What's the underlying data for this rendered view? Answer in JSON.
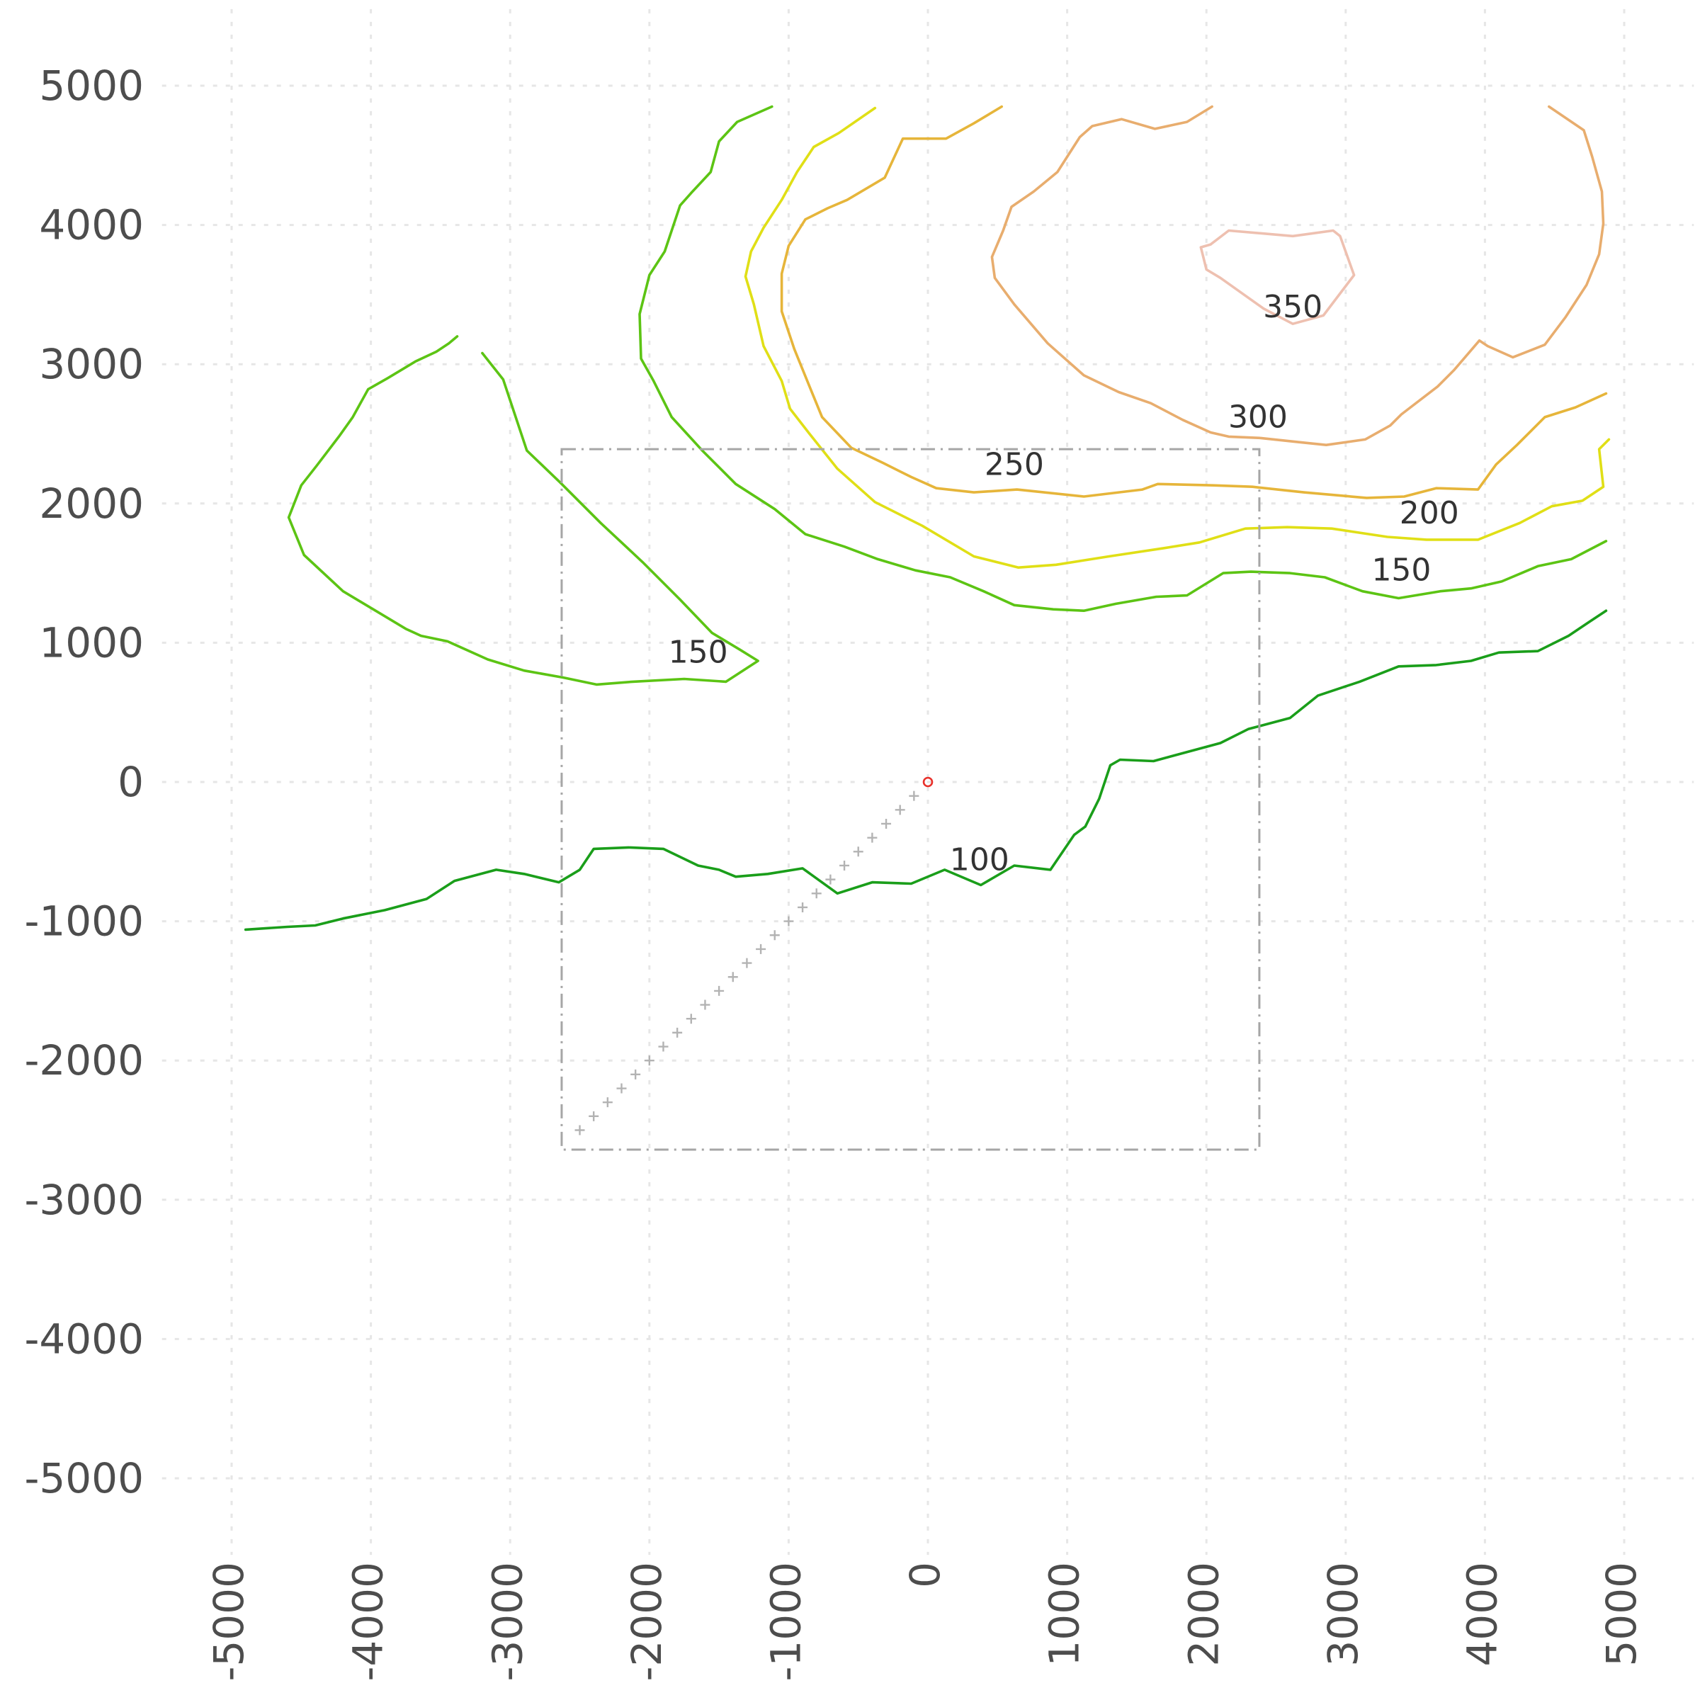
{
  "chart_data": {
    "type": "contour",
    "title": "",
    "xlabel": "",
    "ylabel": "",
    "xlim": [
      -5500,
      5500
    ],
    "ylim": [
      -5550,
      5550
    ],
    "x_ticks": [
      "-5000",
      "-4000",
      "-3000",
      "-2000",
      "-1000",
      "0",
      "1000",
      "2000",
      "3000",
      "4000",
      "5000"
    ],
    "y_ticks": [
      "5000",
      "4000",
      "3000",
      "2000",
      "1000",
      "0",
      "-1000",
      "-2000",
      "-3000",
      "-4000",
      "-5000"
    ],
    "grid": true,
    "colors": {
      "level_100": "#1a9e1a",
      "level_150": "#5cc414",
      "level_200": "#e0df16",
      "level_250": "#e6b53a",
      "level_300": "#e8ad6e",
      "level_350": "#eec0b0",
      "region": "#a6a6a6",
      "path": "#b3b3b3",
      "origin": "#e8302a"
    },
    "contours": [
      {
        "level": "100",
        "color_key": "level_100",
        "label_at": [
          370,
          -560
        ],
        "points": [
          [
            -4900,
            -1060
          ],
          [
            -4600,
            -1040
          ],
          [
            -4400,
            -1030
          ],
          [
            -4200,
            -980
          ],
          [
            -3900,
            -920
          ],
          [
            -3600,
            -840
          ],
          [
            -3400,
            -710
          ],
          [
            -3100,
            -630
          ],
          [
            -2900,
            -660
          ],
          [
            -2650,
            -720
          ],
          [
            -2500,
            -630
          ],
          [
            -2400,
            -480
          ],
          [
            -2150,
            -470
          ],
          [
            -1900,
            -480
          ],
          [
            -1650,
            -600
          ],
          [
            -1500,
            -630
          ],
          [
            -1380,
            -680
          ],
          [
            -1150,
            -660
          ],
          [
            -900,
            -620
          ],
          [
            -650,
            -800
          ],
          [
            -400,
            -720
          ],
          [
            -120,
            -730
          ],
          [
            120,
            -630
          ],
          [
            380,
            -740
          ],
          [
            620,
            -600
          ],
          [
            880,
            -630
          ],
          [
            1050,
            -380
          ],
          [
            1130,
            -320
          ],
          [
            1230,
            -120
          ],
          [
            1310,
            120
          ],
          [
            1380,
            160
          ],
          [
            1620,
            150
          ],
          [
            2100,
            280
          ],
          [
            2300,
            380
          ],
          [
            2600,
            460
          ],
          [
            2800,
            620
          ],
          [
            3100,
            720
          ],
          [
            3380,
            830
          ],
          [
            3650,
            840
          ],
          [
            3900,
            870
          ],
          [
            4100,
            930
          ],
          [
            4380,
            940
          ],
          [
            4600,
            1050
          ],
          [
            4750,
            1150
          ],
          [
            4870,
            1230
          ]
        ]
      },
      {
        "level": "150",
        "color_key": "level_150",
        "label_at": [
          -1650,
          930
        ],
        "points": [
          [
            -1120,
            4850
          ],
          [
            -1370,
            4740
          ],
          [
            -1500,
            4600
          ],
          [
            -1560,
            4380
          ],
          [
            -1700,
            4230
          ],
          [
            -1780,
            4140
          ],
          [
            -1890,
            3810
          ],
          [
            -2000,
            3640
          ],
          [
            -2070,
            3360
          ],
          [
            -2060,
            3040
          ],
          [
            -1970,
            2880
          ],
          [
            -1840,
            2620
          ],
          [
            -1620,
            2380
          ],
          [
            -1380,
            2140
          ],
          [
            -1100,
            1960
          ],
          [
            -880,
            1780
          ],
          [
            -600,
            1690
          ],
          [
            -360,
            1600
          ],
          [
            -90,
            1520
          ],
          [
            160,
            1470
          ],
          [
            400,
            1370
          ],
          [
            620,
            1270
          ],
          [
            900,
            1240
          ],
          [
            1120,
            1230
          ],
          [
            1350,
            1280
          ],
          [
            1640,
            1330
          ],
          [
            1860,
            1340
          ],
          [
            2120,
            1500
          ],
          [
            2320,
            1510
          ],
          [
            2600,
            1500
          ],
          [
            2850,
            1470
          ],
          [
            3120,
            1370
          ],
          [
            3380,
            1320
          ],
          [
            3680,
            1370
          ],
          [
            3900,
            1390
          ],
          [
            4120,
            1440
          ],
          [
            4380,
            1550
          ],
          [
            4620,
            1600
          ],
          [
            4870,
            1730
          ]
        ]
      },
      {
        "level": "150",
        "color_key": "level_150",
        "label_at": [
          3400,
          1520
        ],
        "points": [
          [
            -3380,
            3200
          ],
          [
            -3440,
            3150
          ],
          [
            -3530,
            3090
          ],
          [
            -3680,
            3020
          ],
          [
            -3880,
            2900
          ],
          [
            -4020,
            2820
          ],
          [
            -4130,
            2620
          ],
          [
            -4230,
            2480
          ],
          [
            -4390,
            2270
          ],
          [
            -4500,
            2130
          ],
          [
            -4590,
            1900
          ],
          [
            -4480,
            1630
          ],
          [
            -4200,
            1370
          ],
          [
            -3950,
            1220
          ],
          [
            -3750,
            1100
          ],
          [
            -3640,
            1050
          ],
          [
            -3450,
            1010
          ],
          [
            -3160,
            880
          ],
          [
            -2900,
            800
          ],
          [
            -2620,
            750
          ],
          [
            -2380,
            700
          ],
          [
            -2120,
            720
          ],
          [
            -1750,
            740
          ],
          [
            -1450,
            720
          ],
          [
            -1220,
            870
          ],
          [
            -1350,
            950
          ],
          [
            -1550,
            1070
          ],
          [
            -1780,
            1310
          ],
          [
            -2050,
            1580
          ],
          [
            -2350,
            1860
          ],
          [
            -2640,
            2150
          ],
          [
            -2880,
            2380
          ],
          [
            -3050,
            2890
          ],
          [
            -3200,
            3080
          ]
        ]
      },
      {
        "level": "200",
        "color_key": "level_200",
        "label_at": [
          3600,
          1930
        ],
        "points": [
          [
            -380,
            4840
          ],
          [
            -640,
            4660
          ],
          [
            -820,
            4560
          ],
          [
            -940,
            4380
          ],
          [
            -1050,
            4180
          ],
          [
            -1180,
            3980
          ],
          [
            -1270,
            3810
          ],
          [
            -1310,
            3630
          ],
          [
            -1250,
            3430
          ],
          [
            -1180,
            3130
          ],
          [
            -1050,
            2880
          ],
          [
            -990,
            2680
          ],
          [
            -850,
            2500
          ],
          [
            -650,
            2250
          ],
          [
            -380,
            2010
          ],
          [
            -40,
            1840
          ],
          [
            330,
            1620
          ],
          [
            650,
            1540
          ],
          [
            920,
            1560
          ],
          [
            1300,
            1620
          ],
          [
            1700,
            1680
          ],
          [
            1950,
            1720
          ],
          [
            2280,
            1820
          ],
          [
            2580,
            1830
          ],
          [
            2900,
            1820
          ],
          [
            3300,
            1760
          ],
          [
            3580,
            1740
          ],
          [
            3950,
            1740
          ],
          [
            4250,
            1860
          ],
          [
            4480,
            1980
          ],
          [
            4700,
            2020
          ],
          [
            4850,
            2120
          ],
          [
            4820,
            2390
          ],
          [
            4890,
            2460
          ]
        ]
      },
      {
        "level": "250",
        "color_key": "level_250",
        "label_at": [
          620,
          2280
        ],
        "points": [
          [
            530,
            4850
          ],
          [
            330,
            4730
          ],
          [
            130,
            4620
          ],
          [
            -180,
            4620
          ],
          [
            -310,
            4340
          ],
          [
            -580,
            4180
          ],
          [
            -720,
            4120
          ],
          [
            -880,
            4040
          ],
          [
            -1000,
            3850
          ],
          [
            -1050,
            3650
          ],
          [
            -1050,
            3380
          ],
          [
            -960,
            3110
          ],
          [
            -850,
            2840
          ],
          [
            -760,
            2620
          ],
          [
            -550,
            2400
          ],
          [
            -320,
            2290
          ],
          [
            -120,
            2190
          ],
          [
            60,
            2110
          ],
          [
            330,
            2080
          ],
          [
            640,
            2100
          ],
          [
            1120,
            2050
          ],
          [
            1540,
            2100
          ],
          [
            1650,
            2140
          ],
          [
            2050,
            2130
          ],
          [
            2330,
            2120
          ],
          [
            2700,
            2080
          ],
          [
            3150,
            2040
          ],
          [
            3420,
            2050
          ],
          [
            3650,
            2110
          ],
          [
            3950,
            2100
          ],
          [
            4080,
            2280
          ],
          [
            4230,
            2420
          ],
          [
            4430,
            2620
          ],
          [
            4650,
            2690
          ],
          [
            4870,
            2790
          ]
        ]
      },
      {
        "level": "300",
        "color_key": "level_300",
        "label_at": [
          2370,
          2620
        ],
        "points": [
          [
            2040,
            4850
          ],
          [
            1860,
            4740
          ],
          [
            1630,
            4690
          ],
          [
            1390,
            4760
          ],
          [
            1180,
            4710
          ],
          [
            1090,
            4630
          ],
          [
            930,
            4380
          ],
          [
            760,
            4240
          ],
          [
            600,
            4130
          ],
          [
            540,
            3960
          ],
          [
            460,
            3770
          ],
          [
            480,
            3620
          ],
          [
            620,
            3430
          ],
          [
            860,
            3150
          ],
          [
            1120,
            2920
          ],
          [
            1370,
            2800
          ],
          [
            1600,
            2720
          ],
          [
            1830,
            2600
          ],
          [
            2030,
            2510
          ],
          [
            2160,
            2480
          ],
          [
            2390,
            2470
          ],
          [
            2670,
            2440
          ],
          [
            2860,
            2420
          ],
          [
            3140,
            2460
          ],
          [
            3320,
            2560
          ],
          [
            3400,
            2640
          ],
          [
            3660,
            2840
          ],
          [
            3780,
            2960
          ],
          [
            3960,
            3170
          ],
          [
            4020,
            3130
          ],
          [
            4200,
            3050
          ],
          [
            4430,
            3140
          ],
          [
            4580,
            3340
          ],
          [
            4730,
            3570
          ],
          [
            4820,
            3790
          ],
          [
            4850,
            4010
          ],
          [
            4840,
            4240
          ],
          [
            4770,
            4490
          ],
          [
            4710,
            4680
          ],
          [
            4460,
            4850
          ]
        ]
      },
      {
        "level": "350",
        "color_key": "level_350",
        "label_at": [
          2620,
          3410
        ],
        "points": [
          [
            2030,
            3860
          ],
          [
            2160,
            3960
          ],
          [
            2620,
            3920
          ],
          [
            2910,
            3960
          ],
          [
            2960,
            3920
          ],
          [
            3060,
            3640
          ],
          [
            2840,
            3350
          ],
          [
            2620,
            3290
          ],
          [
            2410,
            3400
          ],
          [
            2100,
            3620
          ],
          [
            2000,
            3680
          ],
          [
            1960,
            3840
          ],
          [
            2030,
            3860
          ]
        ]
      }
    ],
    "region_box": {
      "x": [
        -2630,
        2380
      ],
      "y": [
        -2640,
        2390
      ]
    },
    "origin_point": [
      0,
      0
    ],
    "path_points": [
      [
        -2500,
        -2500
      ],
      [
        -2400,
        -2400
      ],
      [
        -2300,
        -2300
      ],
      [
        -2200,
        -2200
      ],
      [
        -2100,
        -2100
      ],
      [
        -2000,
        -2000
      ],
      [
        -1900,
        -1900
      ],
      [
        -1800,
        -1800
      ],
      [
        -1700,
        -1700
      ],
      [
        -1600,
        -1600
      ],
      [
        -1500,
        -1500
      ],
      [
        -1400,
        -1400
      ],
      [
        -1300,
        -1300
      ],
      [
        -1200,
        -1200
      ],
      [
        -1100,
        -1100
      ],
      [
        -1000,
        -1000
      ],
      [
        -900,
        -900
      ],
      [
        -800,
        -800
      ],
      [
        -700,
        -700
      ],
      [
        -600,
        -600
      ],
      [
        -500,
        -500
      ],
      [
        -400,
        -400
      ],
      [
        -300,
        -300
      ],
      [
        -200,
        -200
      ],
      [
        -100,
        -100
      ]
    ]
  }
}
